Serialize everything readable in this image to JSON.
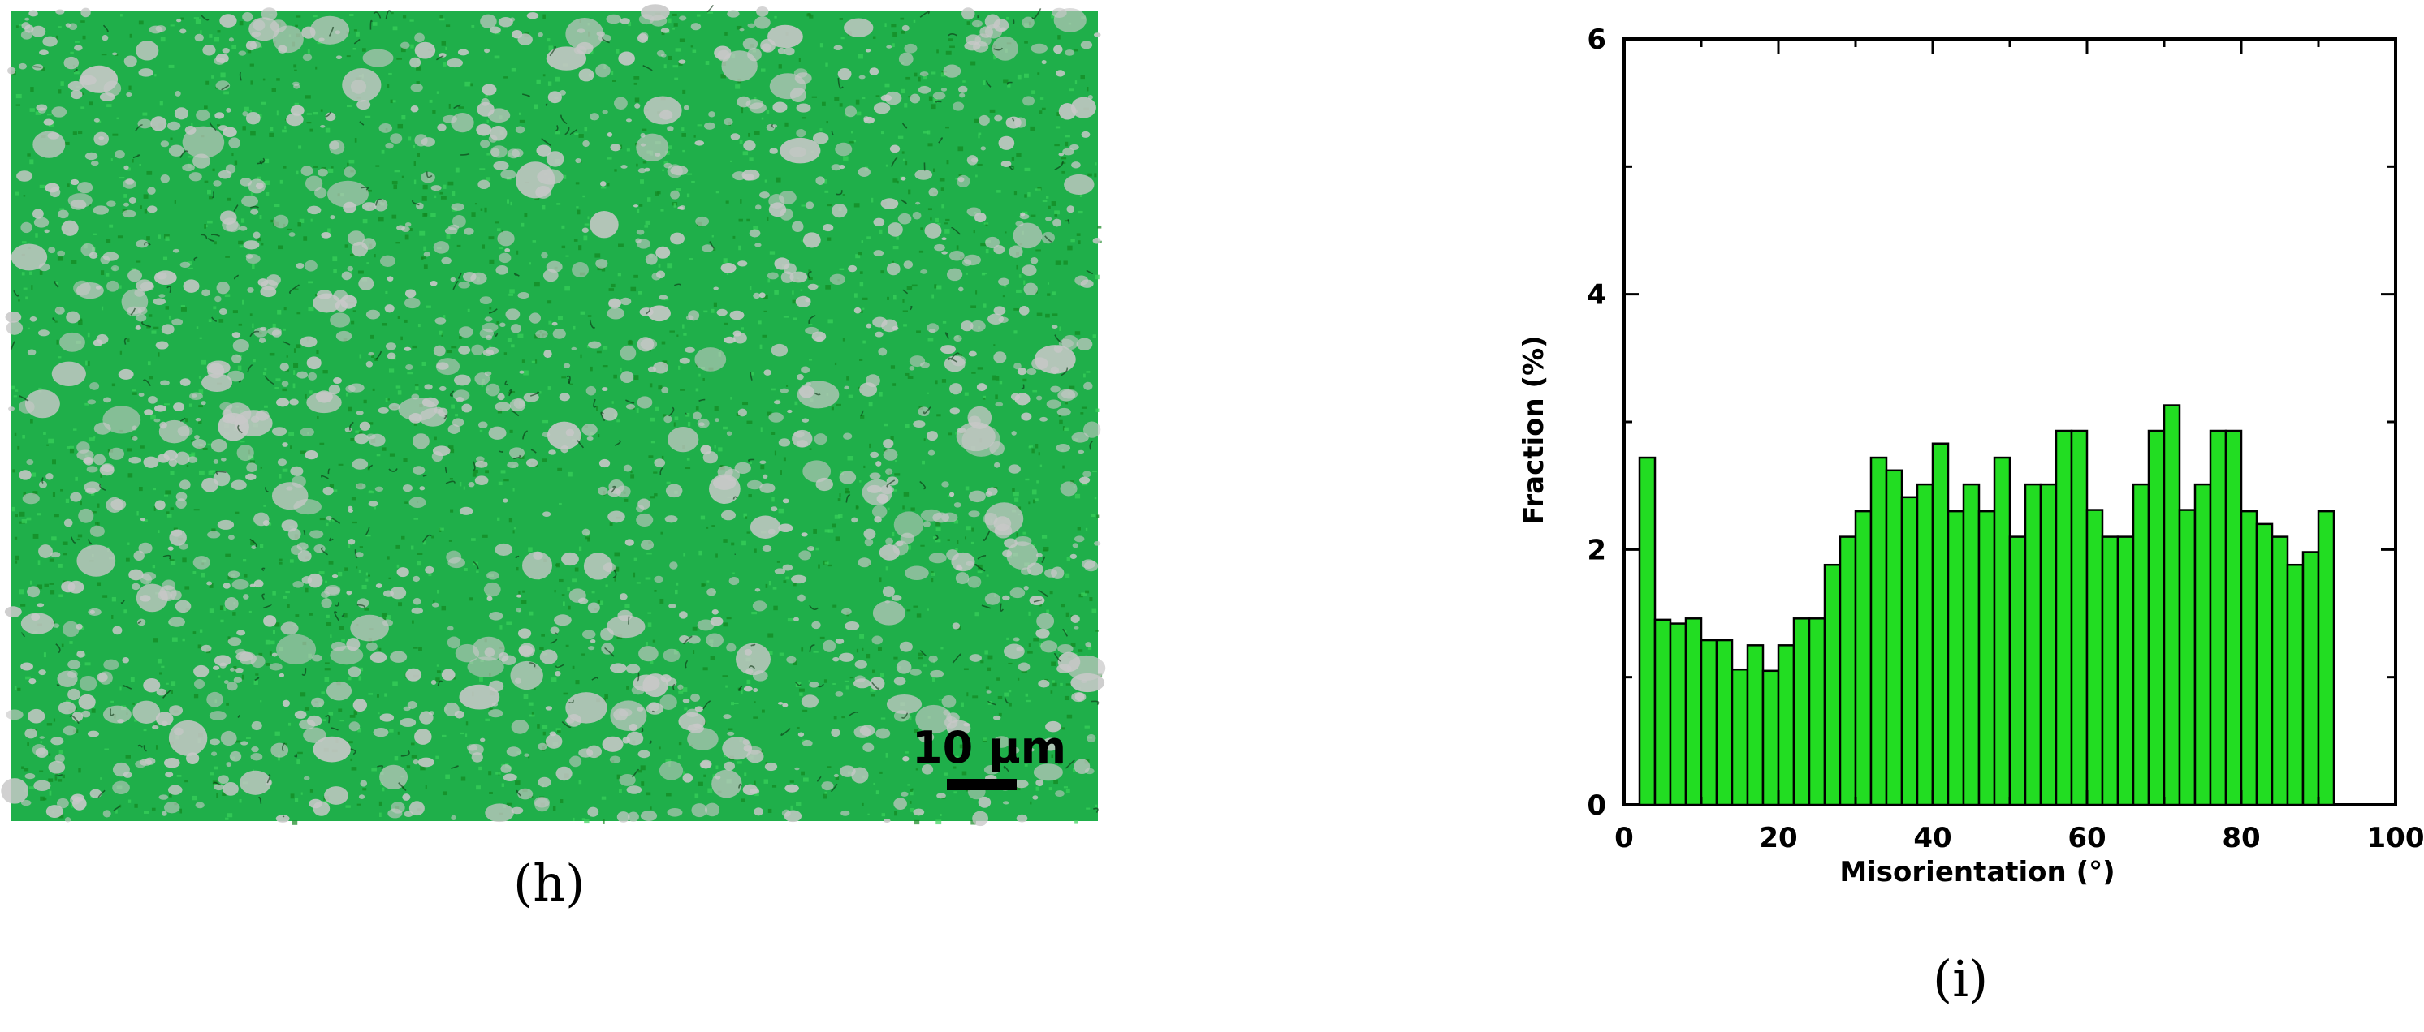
{
  "panels": {
    "h": {
      "label": "(h)",
      "scale_bar_text": "10 μm"
    },
    "i": {
      "label": "(i)"
    }
  },
  "colors": {
    "matrix_green": "#1faf4a",
    "grain_gray": "#c8c8c8",
    "bar_fill": "#22dd22",
    "bar_stroke": "#000000"
  },
  "chart_data": {
    "type": "bar",
    "xlabel": "Misorientation (°)",
    "ylabel": "Fraction (%)",
    "xlim": [
      0,
      100
    ],
    "ylim": [
      0,
      6
    ],
    "xticks": [
      "0",
      "20",
      "40",
      "60",
      "80",
      "100"
    ],
    "yticks": [
      "0",
      "2",
      "4",
      "6"
    ],
    "bin_width": 2,
    "x": [
      3,
      5,
      7,
      9,
      11,
      13,
      15,
      17,
      19,
      21,
      23,
      25,
      27,
      29,
      31,
      33,
      35,
      37,
      39,
      41,
      43,
      45,
      47,
      49,
      51,
      53,
      55,
      57,
      59,
      61,
      63,
      65,
      67,
      69,
      71,
      73,
      75,
      77,
      79,
      81,
      83,
      85,
      87,
      89,
      91
    ],
    "values": [
      2.72,
      1.45,
      1.42,
      1.46,
      1.29,
      1.29,
      1.06,
      1.25,
      1.05,
      1.25,
      1.46,
      1.46,
      1.88,
      2.1,
      2.3,
      2.72,
      2.62,
      2.41,
      2.51,
      2.83,
      2.3,
      2.51,
      2.3,
      2.72,
      2.1,
      2.51,
      2.51,
      2.93,
      2.93,
      2.31,
      2.1,
      2.1,
      2.51,
      2.93,
      3.13,
      2.31,
      2.51,
      2.93,
      2.93,
      2.3,
      2.2,
      2.1,
      1.88,
      1.98,
      2.3
    ]
  }
}
